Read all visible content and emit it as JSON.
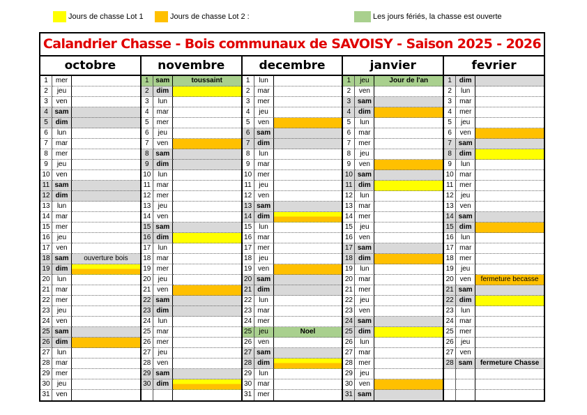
{
  "legend": [
    {
      "label": "Jours de chasse Lot 1",
      "color": "#ffff00"
    },
    {
      "label": "Jours de chasse Lot 2 :",
      "color": "#ffc000"
    },
    {
      "label": "Les jours fériés, la chasse est ouverte",
      "color": "#a9d08e"
    }
  ],
  "title": "Calandrier Chasse - Bois communaux de SAVOISY - Saison 2025 - 2026",
  "colors": {
    "lot1": "#ffff00",
    "lot2": "#ffc000",
    "ferie": "#a9d08e",
    "weekend": "#d9d9d9",
    "title": "#e00000"
  },
  "months": [
    {
      "name": "octobre",
      "start": "mer",
      "count": 31,
      "fills": {
        "19": "both",
        "26": "lot2"
      },
      "notes": {
        "18": {
          "text": "ouverture bois",
          "bold": false
        }
      }
    },
    {
      "name": "novembre",
      "start": "sam",
      "count": 30,
      "fills": {
        "1": "ferie",
        "2": "lot1",
        "7": "lot2",
        "16": "lot1",
        "21": "lot2",
        "30": "both"
      },
      "notes": {
        "1": {
          "text": "toussaint",
          "bold": true
        }
      }
    },
    {
      "name": "decembre",
      "start": "lun",
      "count": 31,
      "fills": {
        "5": "lot2",
        "14": "both",
        "19": "lot2",
        "25": "ferie",
        "28": "both"
      },
      "notes": {
        "25": {
          "text": "Noel",
          "bold": true
        }
      }
    },
    {
      "name": "janvier",
      "start": "jeu",
      "count": 31,
      "fills": {
        "1": "ferie",
        "4": "lot2",
        "9": "lot2",
        "11": "lot1",
        "18": "lot2",
        "25": "lot1",
        "30": "lot2"
      },
      "notes": {
        "1": {
          "text": "Jour de l'an",
          "bold": true
        }
      }
    },
    {
      "name": "fevrier",
      "start": "dim",
      "count": 28,
      "fills": {
        "6": "lot2",
        "8": "lot1",
        "15": "lot2",
        "20": "lot2",
        "22": "lot1"
      },
      "notes": {
        "20": {
          "text": "fermeture becasse",
          "bold": false
        },
        "28": {
          "text": "fermeture Chasse",
          "bold": true
        }
      }
    }
  ],
  "weekdays": [
    "lun",
    "mar",
    "mer",
    "jeu",
    "ven",
    "sam",
    "dim"
  ]
}
